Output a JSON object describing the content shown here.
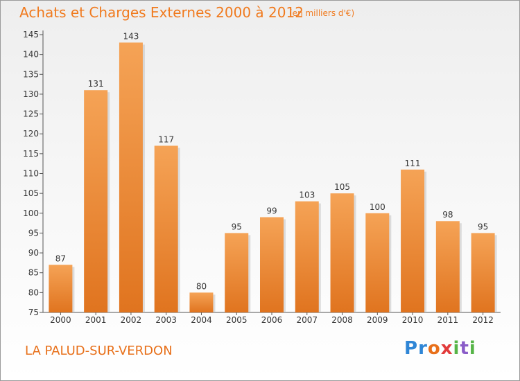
{
  "header": {
    "title": "Achats et Charges Externes 2000 à 2012",
    "subtitle": "(en milliers d'€)"
  },
  "footer": {
    "place": "LA PALUD-SUR-VERDON",
    "logo": {
      "letters": [
        "P",
        "r",
        "o",
        "x",
        "i",
        "t",
        "i"
      ],
      "colors": [
        "#2f86d6",
        "#2f86d6",
        "#e8701a",
        "#e23b3b",
        "#56b447",
        "#8a5cc8",
        "#56b447"
      ]
    }
  },
  "colors": {
    "bar_top": "#f5a356",
    "bar_bottom": "#e0741f",
    "axis": "#555555",
    "grid": "#cccccc"
  },
  "chart_data": {
    "type": "bar",
    "title": "Achats et Charges Externes 2000 à 2012",
    "subtitle": "(en milliers d'€)",
    "categories": [
      "2000",
      "2001",
      "2002",
      "2003",
      "2004",
      "2005",
      "2006",
      "2007",
      "2008",
      "2009",
      "2010",
      "2011",
      "2012"
    ],
    "values": [
      87,
      131,
      143,
      117,
      80,
      95,
      99,
      103,
      105,
      100,
      111,
      98,
      95
    ],
    "ylim": [
      75,
      145
    ],
    "yticks": [
      75,
      80,
      85,
      90,
      95,
      100,
      105,
      110,
      115,
      120,
      125,
      130,
      135,
      140,
      145
    ],
    "grid": false,
    "legend": "none"
  }
}
